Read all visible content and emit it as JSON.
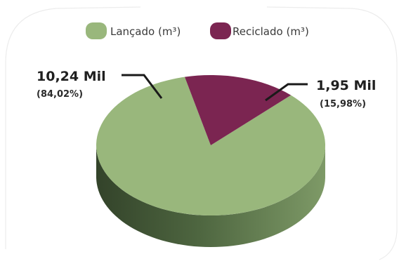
{
  "chart_data": {
    "type": "pie",
    "subtitle_fragment": "(m³)",
    "legend_placement": "top",
    "slices": [
      {
        "label": "Lançado (m³)",
        "value": 10.24,
        "value_label": "10,24 Mil",
        "percent_label": "(84,02%)",
        "percent": 84.02,
        "color": "#99b77c"
      },
      {
        "label": "Reciclado (m³)",
        "value": 1.95,
        "value_label": "1,95 Mil",
        "percent_label": "(15,98%)",
        "percent": 15.98,
        "color": "#7b2551"
      }
    ]
  },
  "colors": {
    "side_dark": "#33432a",
    "side_mid": "#4e6640",
    "side_light": "#7e9a67",
    "frame": "#ececec",
    "leader": "#1a1a1a"
  }
}
